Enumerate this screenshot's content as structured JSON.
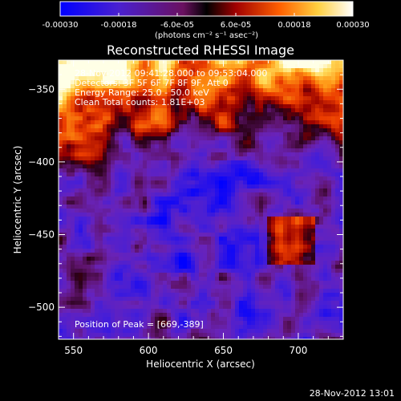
{
  "chart_data": {
    "type": "heatmap",
    "title": "Reconstructed RHESSI Image",
    "xlabel": "Heliocentric X (arcsec)",
    "ylabel": "Heliocentric Y (arcsec)",
    "xlim": [
      540,
      730
    ],
    "ylim": [
      -522,
      -330
    ],
    "x_ticks": [
      550,
      600,
      650,
      700
    ],
    "y_ticks": [
      -350,
      -400,
      -450,
      -500
    ],
    "colorbar": {
      "label": "(photons cm⁻² s⁻¹ asec⁻²)",
      "range": [
        -0.0003,
        0.0003
      ],
      "ticks": [
        "-0.00030",
        "-0.00018",
        "-6.0e-05",
        "6.0e-05",
        "0.00018",
        "0.00030"
      ],
      "colors": [
        "#0000ff",
        "#6a1fc0",
        "#7a1a20",
        "#d01000",
        "#ff7000",
        "#ffe060",
        "#ffffff"
      ]
    },
    "annotations": [
      "28-Nov-2012 09:41:28.000 to 09:53:04.000",
      "Detectors: 3F 5F 6F 7F 8F 9F, Att 0",
      "Energy Range: 25.0 - 50.0 keV",
      "Clean    Total counts: 1.81E+03"
    ],
    "peak_note": "Position of Peak = [669,-389]",
    "peak": [
      669,
      -389
    ]
  },
  "footer": {
    "timestamp": "28-Nov-2012 13:01"
  }
}
